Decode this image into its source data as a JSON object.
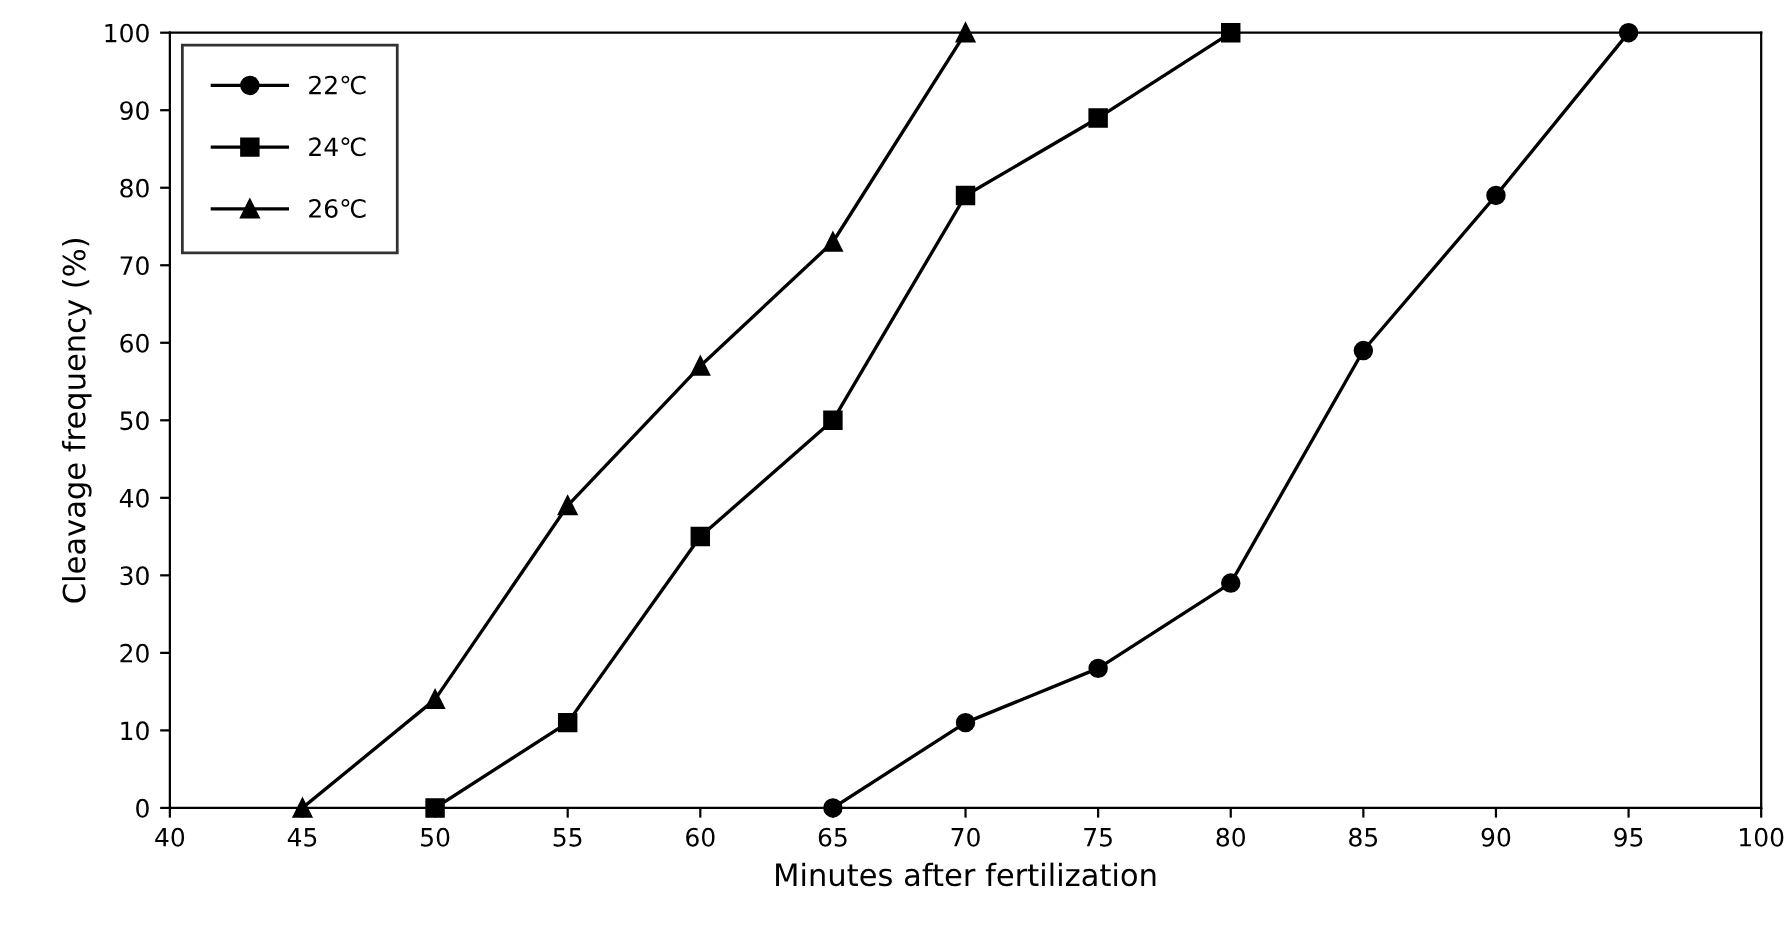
{
  "chart_data": {
    "type": "line",
    "xlabel": "Minutes after fertilization",
    "ylabel": "Cleavage frequency (%)",
    "xlim": [
      40,
      100
    ],
    "xticks": [
      40,
      45,
      50,
      55,
      60,
      65,
      70,
      75,
      80,
      85,
      90,
      95,
      100
    ],
    "ylim": [
      0,
      100
    ],
    "yticks": [
      0,
      10,
      20,
      30,
      40,
      50,
      60,
      70,
      80,
      90,
      100
    ],
    "grid": false,
    "legend": "top left",
    "line_style": "solid",
    "series": [
      {
        "name": "22℃",
        "color": "#000000",
        "marker": "circle",
        "x": [
          65,
          70,
          75,
          80,
          85,
          90,
          95
        ],
        "values": [
          0,
          11,
          18,
          29,
          59,
          79,
          100
        ]
      },
      {
        "name": "24℃",
        "color": "#000000",
        "marker": "square",
        "x": [
          50,
          55,
          60,
          65,
          70,
          75,
          80
        ],
        "values": [
          0,
          11,
          35,
          50,
          79,
          89,
          100
        ]
      },
      {
        "name": "26℃",
        "color": "#000000",
        "marker": "triangle",
        "x": [
          45,
          50,
          55,
          60,
          65,
          70
        ],
        "values": [
          0,
          14,
          39,
          57,
          73,
          100
        ]
      }
    ]
  }
}
